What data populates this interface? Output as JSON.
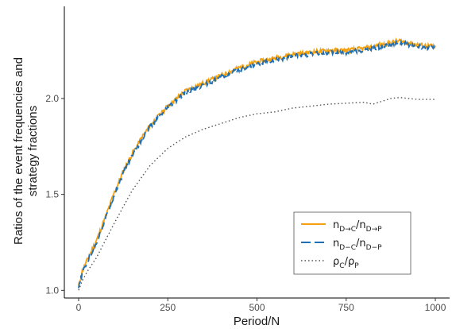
{
  "chart_data": {
    "type": "line",
    "xlabel": "Period/N",
    "ylabel_lines": [
      "Ratios of the event frequencies and",
      "strategy fractions"
    ],
    "xlim": [
      -40,
      1040
    ],
    "ylim": [
      0.96,
      2.48
    ],
    "x_ticks": [
      0,
      250,
      500,
      750,
      1000
    ],
    "x_tick_labels": [
      "0",
      "250",
      "500",
      "750",
      "1000"
    ],
    "y_ticks": [
      1.0,
      1.5,
      2.0
    ],
    "y_tick_labels": [
      "1.0",
      "1.5",
      "2.0"
    ],
    "legend_position": "bottom-right",
    "series": [
      {
        "name": "n_{D→C}/n_{D→P}",
        "legend": {
          "main": "n",
          "sub1": "D→C",
          "mid": "/n",
          "sub2": "D→P"
        },
        "color": "#F5A00F",
        "style": "solid",
        "noise": 0.012,
        "x": [
          0,
          10,
          25,
          50,
          75,
          100,
          125,
          150,
          175,
          200,
          250,
          300,
          350,
          400,
          450,
          500,
          550,
          600,
          650,
          700,
          750,
          800,
          850,
          900,
          950,
          1000
        ],
        "y": [
          1.02,
          1.1,
          1.16,
          1.26,
          1.38,
          1.51,
          1.62,
          1.71,
          1.79,
          1.86,
          1.96,
          2.04,
          2.08,
          2.12,
          2.16,
          2.19,
          2.21,
          2.23,
          2.24,
          2.25,
          2.25,
          2.26,
          2.28,
          2.3,
          2.28,
          2.27
        ]
      },
      {
        "name": "n_{D−C}/n_{D−P}",
        "legend": {
          "main": "n",
          "sub1": "D−C",
          "mid": "/n",
          "sub2": "D−P"
        },
        "color": "#1F6FB5",
        "style": "dashed",
        "noise": 0.012,
        "x": [
          0,
          10,
          25,
          50,
          75,
          100,
          125,
          150,
          175,
          200,
          250,
          300,
          350,
          400,
          450,
          500,
          550,
          600,
          650,
          700,
          750,
          800,
          850,
          900,
          950,
          1000
        ],
        "y": [
          1.01,
          1.09,
          1.15,
          1.25,
          1.37,
          1.5,
          1.61,
          1.7,
          1.78,
          1.85,
          1.95,
          2.03,
          2.07,
          2.11,
          2.15,
          2.18,
          2.2,
          2.22,
          2.23,
          2.24,
          2.24,
          2.25,
          2.27,
          2.29,
          2.27,
          2.26
        ]
      },
      {
        "name": "ρ_C/ρ_P",
        "legend": {
          "main": "ρ",
          "sub1": "C",
          "mid": "/ρ",
          "sub2": "P"
        },
        "color": "#555555",
        "style": "dotted",
        "noise": 0,
        "x": [
          0,
          10,
          25,
          50,
          75,
          100,
          150,
          200,
          250,
          300,
          350,
          400,
          450,
          500,
          550,
          600,
          650,
          700,
          750,
          800,
          825,
          850,
          875,
          900,
          950,
          1000
        ],
        "y": [
          1.0,
          1.05,
          1.1,
          1.17,
          1.26,
          1.35,
          1.52,
          1.65,
          1.74,
          1.8,
          1.84,
          1.87,
          1.9,
          1.92,
          1.93,
          1.95,
          1.96,
          1.97,
          1.975,
          1.98,
          1.97,
          1.985,
          2.0,
          2.005,
          1.995,
          1.995
        ]
      }
    ]
  }
}
